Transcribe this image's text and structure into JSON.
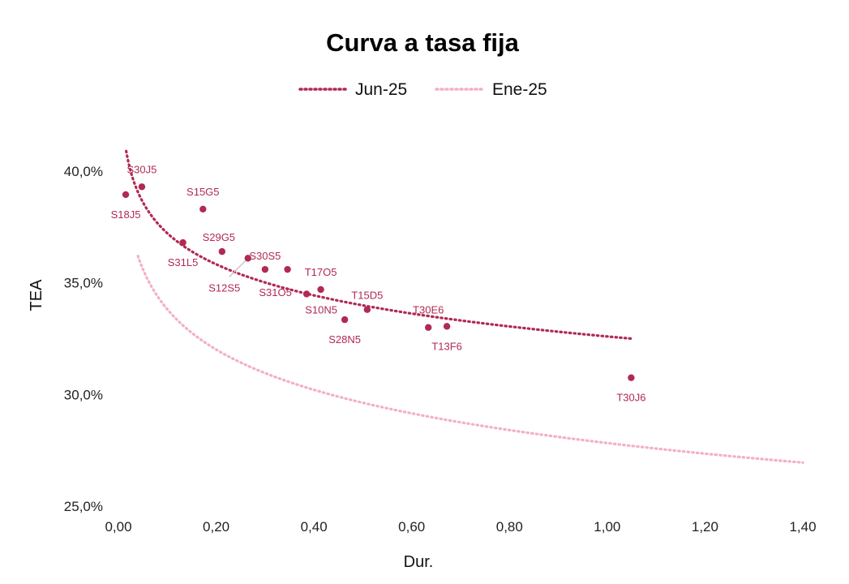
{
  "chart_data": {
    "type": "scatter",
    "title": "Curva  a tasa fija",
    "xlabel": "Dur.",
    "ylabel": "TEA",
    "xlim": [
      0,
      1.4
    ],
    "ylim": [
      25,
      41
    ],
    "x_ticks": [
      0,
      0.2,
      0.4,
      0.6,
      0.8,
      1.0,
      1.2,
      1.4
    ],
    "x_tick_labels": [
      "0,00",
      "0,20",
      "0,40",
      "0,60",
      "0,80",
      "1,00",
      "1,20",
      "1,40"
    ],
    "y_ticks": [
      25,
      30,
      35,
      40
    ],
    "y_tick_labels": [
      "25,0%",
      "30,0%",
      "35,0%",
      "40,0%"
    ],
    "grid": false,
    "legend_position": "top-center",
    "colors": {
      "points": "#b02a52",
      "jun_line": "#b02a52",
      "ene_line": "#f2b1c3",
      "leader": "#c7c7c7"
    },
    "series": [
      {
        "name": "Jun-25",
        "points": [
          {
            "label": "S18J5",
            "x": 0.015,
            "y": 38.95
          },
          {
            "label": "S30J5",
            "x": 0.048,
            "y": 39.3
          },
          {
            "label": "S31L5",
            "x": 0.132,
            "y": 36.8
          },
          {
            "label": "S15G5",
            "x": 0.173,
            "y": 38.3
          },
          {
            "label": "S29G5",
            "x": 0.212,
            "y": 36.4
          },
          {
            "label": "S12S5",
            "x": 0.265,
            "y": 36.1
          },
          {
            "label": "S30S5",
            "x": 0.3,
            "y": 35.6
          },
          {
            "label": "S31O5",
            "x": 0.346,
            "y": 35.6
          },
          {
            "label": "S10N5",
            "x": 0.385,
            "y": 34.5
          },
          {
            "label": "T17O5",
            "x": 0.414,
            "y": 34.7
          },
          {
            "label": "S28N5",
            "x": 0.463,
            "y": 33.35
          },
          {
            "label": "T15D5",
            "x": 0.509,
            "y": 33.8
          },
          {
            "label": "T30E6",
            "x": 0.634,
            "y": 33.0
          },
          {
            "label": "T13F6",
            "x": 0.672,
            "y": 33.05
          },
          {
            "label": "T30J6",
            "x": 1.049,
            "y": 30.75
          }
        ]
      },
      {
        "name": "Ene-25",
        "points": []
      }
    ],
    "trendlines": [
      {
        "series": "Jun-25",
        "x_range": [
          0.016,
          1.05
        ],
        "y_at_start": 40.9,
        "y_at_end": 32.5
      },
      {
        "series": "Ene-25",
        "x_range": [
          0.04,
          1.4
        ],
        "y_at_start": 36.2,
        "y_at_end": 26.95
      }
    ]
  }
}
